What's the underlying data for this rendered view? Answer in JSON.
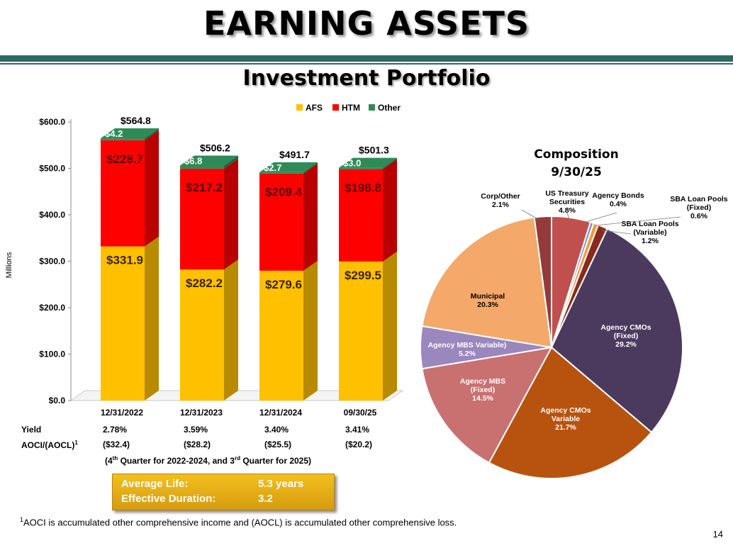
{
  "header": {
    "title": "EARNING ASSETS",
    "subtitle": "Investment Portfolio"
  },
  "colors": {
    "accent_band": "#2a6b62",
    "afs": "#ffc000",
    "htm": "#ff0000",
    "other": "#2e8b57"
  },
  "chart_data": [
    {
      "type": "bar",
      "stacked": true,
      "ylabel": "Millions",
      "ylim": [
        0,
        600
      ],
      "yticks": [
        "$0.0",
        "$100.0",
        "$200.0",
        "$300.0",
        "$400.0",
        "$500.0",
        "$600.0"
      ],
      "legend_position": "top",
      "categories": [
        "12/31/2022",
        "12/31/2023",
        "12/31/2024",
        "09/30/25"
      ],
      "series": [
        {
          "name": "AFS",
          "color": "#ffc000",
          "values": [
            331.9,
            282.2,
            279.6,
            299.5
          ],
          "labels": [
            "$331.9",
            "$282.2",
            "$279.6",
            "$299.5"
          ]
        },
        {
          "name": "HTM",
          "color": "#ff0000",
          "values": [
            228.7,
            217.2,
            209.4,
            198.8
          ],
          "labels": [
            "$228.7",
            "$217.2",
            "$209.4",
            "$198.8"
          ]
        },
        {
          "name": "Other",
          "color": "#2e8b57",
          "values": [
            4.2,
            6.8,
            2.7,
            3.0
          ],
          "labels": [
            "$4.2",
            "$6.8",
            "$2.7",
            "$3.0"
          ]
        }
      ],
      "totals": [
        564.8,
        506.2,
        491.7,
        501.3
      ],
      "total_labels": [
        "$564.8",
        "$506.2",
        "$491.7",
        "$501.3"
      ],
      "rows": [
        {
          "label": "Yield",
          "values": [
            "2.78%",
            "3.59%",
            "3.40%",
            "3.41%"
          ]
        },
        {
          "label": "AOCI/(AOCL)",
          "sup": "1",
          "values": [
            "($32.4)",
            "($28.2)",
            "($25.5)",
            "($20.2)"
          ]
        }
      ]
    },
    {
      "type": "pie",
      "title": "Composition",
      "subtitle": "9/30/25",
      "slices": [
        {
          "name": "US Treasury Securities",
          "value": 4.8,
          "label_lines": [
            "US Treasury",
            "Securities",
            "4.8%"
          ],
          "color": "#c0504d"
        },
        {
          "name": "Agency Bonds",
          "value": 0.4,
          "label_lines": [
            "Agency Bonds",
            "0.4%"
          ],
          "color": "#7b8fd4"
        },
        {
          "name": "SBA Loan Pools (Fixed)",
          "value": 0.6,
          "label_lines": [
            "SBA Loan Pools",
            "(Fixed)",
            "0.6%"
          ],
          "color": "#f29b3c"
        },
        {
          "name": "SBA Loan Pools (Variable)",
          "value": 1.2,
          "label_lines": [
            "SBA Loan Pools",
            "(Variable)",
            "1.2%"
          ],
          "color": "#8b2a1c"
        },
        {
          "name": "Agency CMOs (Fixed)",
          "value": 29.2,
          "label_lines": [
            "Agency  CMOs",
            "(Fixed)",
            "29.2%"
          ],
          "color": "#4b3a5e"
        },
        {
          "name": "Agency CMOs Variable",
          "value": 21.7,
          "label_lines": [
            "Agency CMOs",
            "Variable",
            "21.7%"
          ],
          "color": "#b8530f"
        },
        {
          "name": "Agency MBS (Fixed)",
          "value": 14.5,
          "label_lines": [
            "Agency MBS",
            "(Fixed)",
            "14.5%"
          ],
          "color": "#c97070"
        },
        {
          "name": "Agency MBS Variable)",
          "value": 5.2,
          "label_lines": [
            "Agency MBS Variable)",
            "5.2%"
          ],
          "color": "#9a87be"
        },
        {
          "name": "Municipal",
          "value": 20.3,
          "label_lines": [
            "Municipal",
            "20.3%"
          ],
          "color": "#f4a869"
        },
        {
          "name": "Corp/Other",
          "value": 2.1,
          "label_lines": [
            "Corp/Other",
            "2.1%"
          ],
          "color": "#943a3a"
        }
      ]
    }
  ],
  "quarter_note": {
    "prefix": "(4",
    "sup1": "th",
    "middle": " Quarter for 2022-2024, and 3",
    "sup2": "rd",
    "suffix": " Quarter for 2025)"
  },
  "summary_box": {
    "avg_life_label": "Average Life:",
    "avg_life_value": "5.3 years",
    "eff_dur_label": "Effective Duration:",
    "eff_dur_value": "3.2"
  },
  "footnote": {
    "marker": "1",
    "text": "AOCI is accumulated other comprehensive income and (AOCL) is accumulated other comprehensive loss."
  },
  "page_number": "14"
}
